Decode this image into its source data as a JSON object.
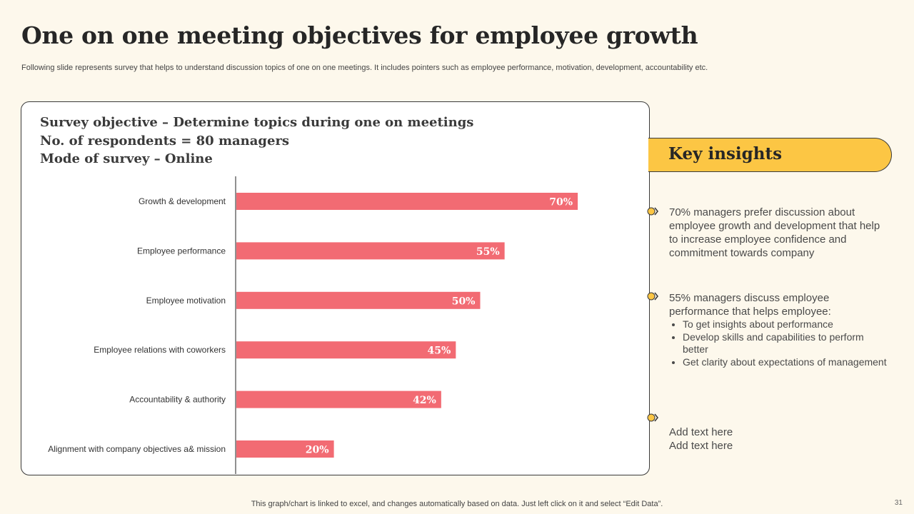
{
  "title": "One on one meeting objectives for employee growth",
  "subtitle": "Following slide represents survey that helps to understand discussion topics of one on one meetings. It includes pointers such as employee performance, motivation, development, accountability etc.",
  "survey": {
    "objective": "Survey objective  – Determine topics during one on meetings",
    "respondents": "No. of respondents = 80 managers",
    "mode": "Mode of survey – Online"
  },
  "chart_data": {
    "type": "bar",
    "orientation": "horizontal",
    "categories": [
      "Growth & development",
      "Employee performance",
      "Employee motivation",
      "Employee relations with coworkers",
      "Accountability & authority",
      "Alignment with company objectives a& mission"
    ],
    "values": [
      70,
      55,
      50,
      45,
      42,
      20
    ],
    "value_labels": [
      "70%",
      "55%",
      "50%",
      "45%",
      "42%",
      "20%"
    ],
    "xlim": [
      0,
      100
    ],
    "grid": false,
    "bar_color": "#F26B73"
  },
  "insights": {
    "title": "Key insights",
    "items": [
      {
        "text": "70% managers prefer discussion about employee growth and development that help to increase employee confidence and commitment towards company",
        "bullets": []
      },
      {
        "text": "55% managers discuss employee performance that helps employee:",
        "bullets": [
          "To get insights about performance",
          "Develop skills and capabilities to perform better",
          "Get clarity about expectations of management"
        ]
      },
      {
        "text": "Add text here\nAdd text here",
        "bullets": []
      }
    ]
  },
  "footer": "This graph/chart is linked to excel,  and changes automatically based on data. Just left click on it and select “Edit Data”.",
  "page_number": "31",
  "colors": {
    "background": "#FDF8EC",
    "accent": "#FCC644",
    "bar": "#F26B73",
    "title": "#262626"
  }
}
